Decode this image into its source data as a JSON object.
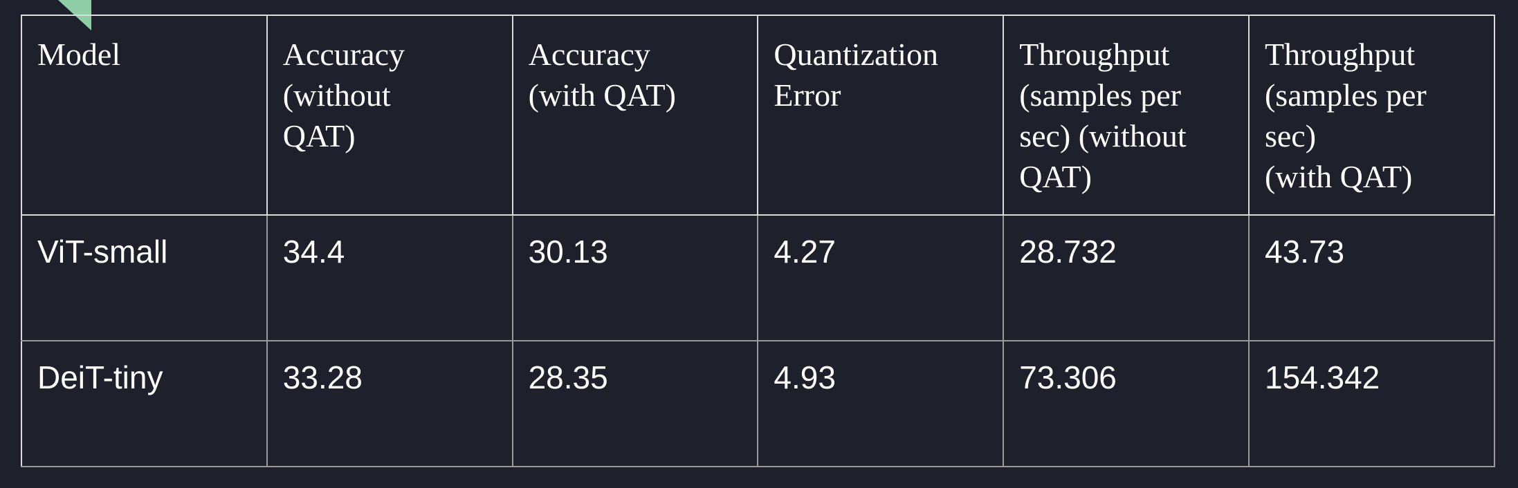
{
  "table": {
    "headers": [
      "Model",
      "Accuracy\n(without\nQAT)",
      "Accuracy\n(with QAT)",
      "Quantization\nError",
      "Throughput\n(samples per\nsec) (without\nQAT)",
      "Throughput\n(samples per\nsec)\n(with QAT)"
    ],
    "rows": [
      [
        "ViT-small",
        "34.4",
        "30.13",
        "4.27",
        "28.732",
        "43.73"
      ],
      [
        "DeiT-tiny",
        "33.28",
        "28.35",
        "4.93",
        "73.306",
        "154.342"
      ]
    ]
  },
  "colors": {
    "background": "#1e212b",
    "text": "#ffffff",
    "grid": "#9a9a9a",
    "corner_mark": "#8fcfa8"
  }
}
